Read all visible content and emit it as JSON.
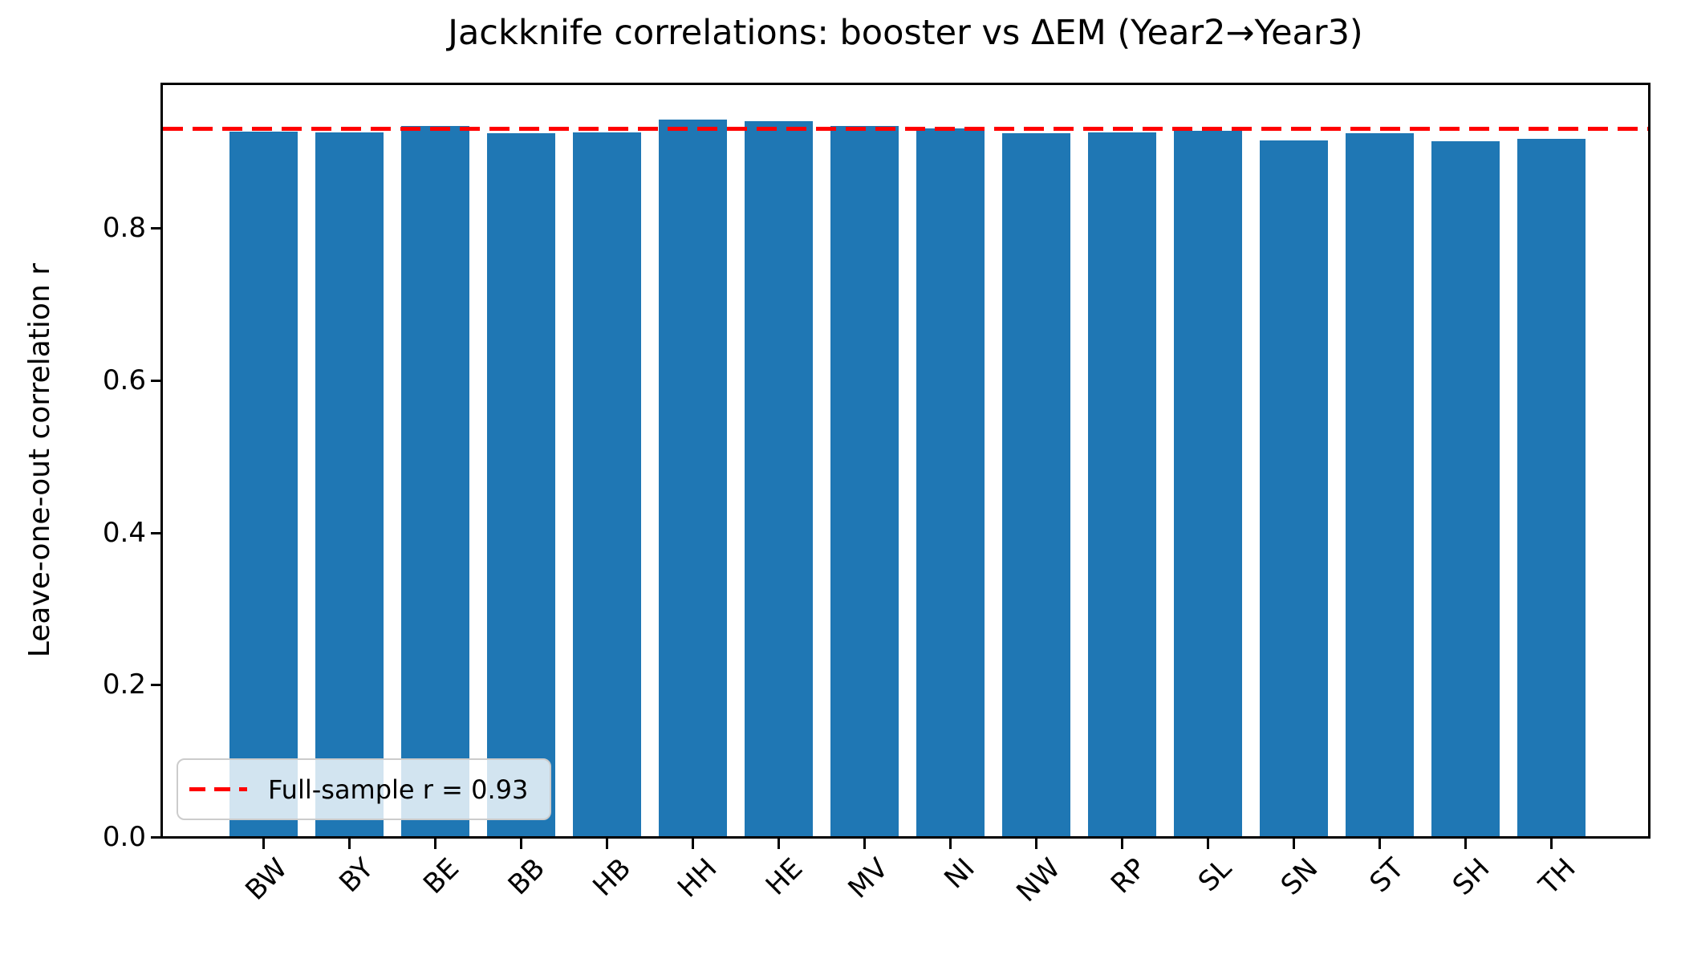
{
  "figure": {
    "background": "#ffffff",
    "spine_color": "#000000"
  },
  "chart_data": {
    "type": "bar",
    "title": "Jackknife correlations: booster vs ΔEM (Year2→Year3)",
    "ylabel": "Leave-one-out correlation r",
    "xlabel": "",
    "categories": [
      "BW",
      "BY",
      "BE",
      "BB",
      "HB",
      "HH",
      "HE",
      "MV",
      "NI",
      "NW",
      "RP",
      "SL",
      "SN",
      "ST",
      "SH",
      "TH"
    ],
    "values": [
      0.927,
      0.926,
      0.934,
      0.925,
      0.926,
      0.943,
      0.941,
      0.934,
      0.931,
      0.925,
      0.926,
      0.928,
      0.915,
      0.925,
      0.914,
      0.917
    ],
    "bar_color": "#1f77b4",
    "ylim": [
      0,
      0.989
    ],
    "yticks": {
      "values": [
        0.0,
        0.2,
        0.4,
        0.6,
        0.8
      ],
      "labels": [
        "0.0",
        "0.2",
        "0.4",
        "0.6",
        "0.8"
      ]
    },
    "grid": false,
    "reference_line": {
      "y": 0.93,
      "color": "#ff0000",
      "style": "dashed"
    },
    "legend": {
      "position": "lower-left",
      "border_color": "#cccccc",
      "entries": [
        {
          "label": "Full-sample r = 0.93",
          "line_color": "#ff0000",
          "line_style": "dashed"
        }
      ]
    }
  }
}
